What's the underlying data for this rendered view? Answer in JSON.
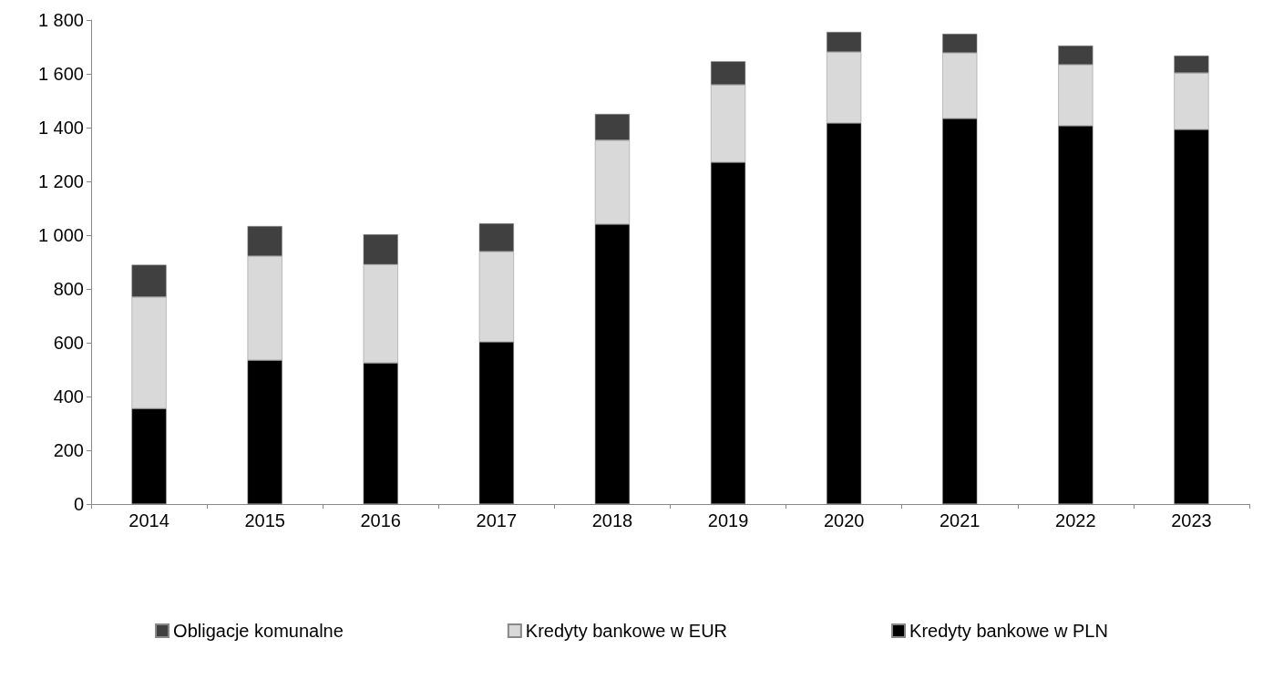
{
  "chart_data": {
    "type": "bar",
    "stacked": true,
    "categories": [
      "2014",
      "2015",
      "2016",
      "2017",
      "2018",
      "2019",
      "2020",
      "2021",
      "2022",
      "2023"
    ],
    "series": [
      {
        "name": "Kredyty bankowe w PLN",
        "color": "#000000",
        "values": [
          355,
          535,
          525,
          603,
          1041,
          1271,
          1417,
          1434,
          1407,
          1393
        ]
      },
      {
        "name": "Kredyty bankowe w EUR",
        "color": "#d9d9d9",
        "values": [
          415,
          387,
          366,
          336,
          312,
          288,
          264,
          244,
          227,
          210
        ]
      },
      {
        "name": "Obligacje komunalne",
        "color": "#404040",
        "values": [
          120,
          112,
          112,
          105,
          98,
          88,
          75,
          71,
          71,
          65
        ]
      }
    ],
    "ylim": [
      0,
      1800
    ],
    "yticks": [
      0,
      200,
      400,
      600,
      800,
      {
        "value": 1000,
        "label": "1 000"
      },
      {
        "value": 1200,
        "label": "1 200"
      },
      {
        "value": 1400,
        "label": "1 400"
      },
      {
        "value": 1600,
        "label": "1 600"
      },
      {
        "value": 1800,
        "label": "1 800"
      }
    ],
    "grid": false,
    "legend": "bottom"
  }
}
